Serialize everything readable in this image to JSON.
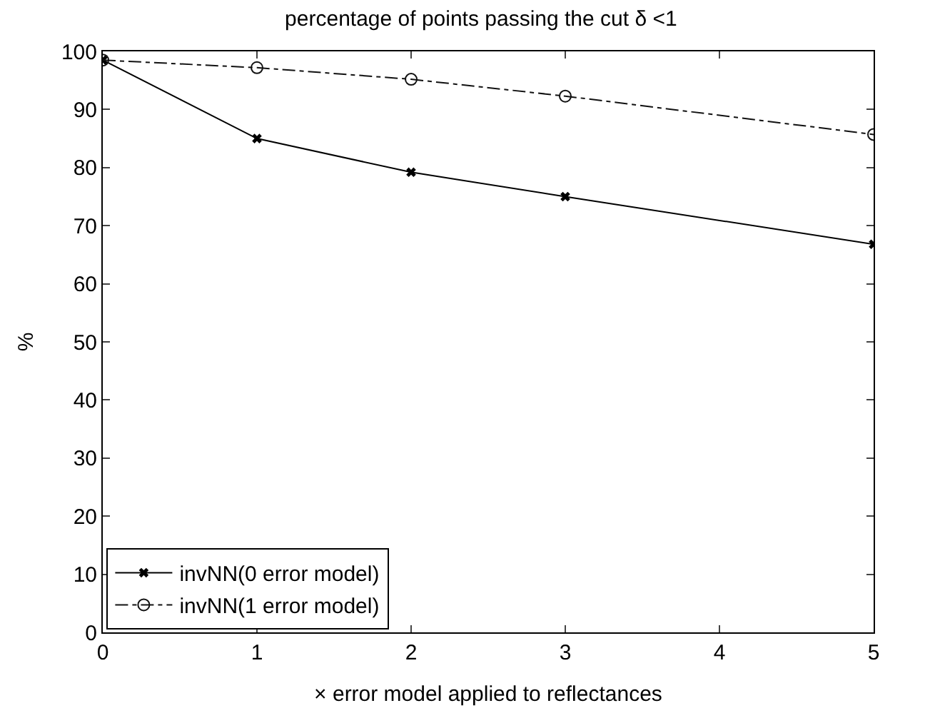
{
  "chart_data": {
    "type": "line",
    "title": "percentage of points passing the cut δ <1",
    "xlabel": "× error model applied to reflectances",
    "ylabel": "%",
    "x": [
      0,
      1,
      2,
      3,
      5
    ],
    "xlim": [
      0,
      5
    ],
    "xticks": [
      0,
      1,
      2,
      3,
      4,
      5
    ],
    "ylim": [
      0,
      100
    ],
    "yticks": [
      0,
      10,
      20,
      30,
      40,
      50,
      60,
      70,
      80,
      90,
      100
    ],
    "legend": "bottom left",
    "series": [
      {
        "name": "invNN(0 error model)",
        "color": "#000000",
        "values": [
          98.5,
          85,
          79.2,
          75,
          66.8
        ],
        "marker": "cross",
        "line_style": "solid"
      },
      {
        "name": "invNN(1 error model)",
        "color": "#111111",
        "values": [
          98.5,
          97.2,
          95.2,
          92.3,
          85.7
        ],
        "marker": "circle",
        "line_style": "dashed"
      }
    ]
  }
}
